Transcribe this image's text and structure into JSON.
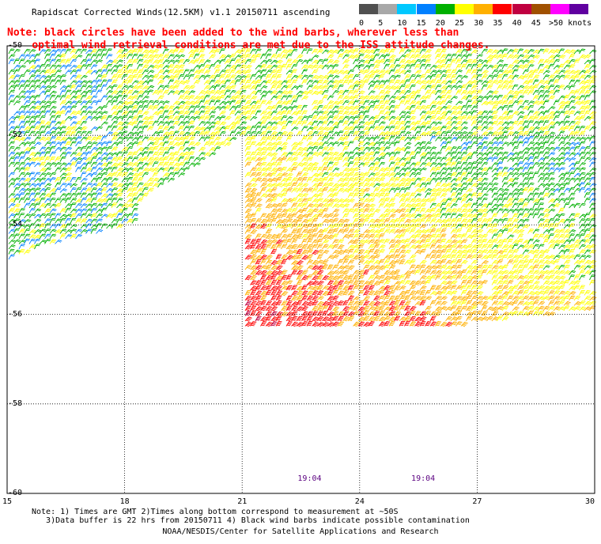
{
  "title": "Rapidscat Corrected Winds(12.5KM) v1.1 20150711 ascending",
  "note_line1": "Note: black circles have been added to the wind barbs, wherever less than",
  "note_line2": "optimal wind retrieval conditions are met due to the ISS attitude changes.",
  "legend": {
    "labels": [
      "0",
      "5",
      "10",
      "15",
      "20",
      "25",
      "30",
      "35",
      "40",
      "45",
      ">50 knots"
    ],
    "colors": [
      "#505050",
      "#a8a8a8",
      "#00c8ff",
      "#0080ff",
      "#00b000",
      "#ffff00",
      "#ffb000",
      "#ff0000",
      "#c00040",
      "#a05000",
      "#ff00ff",
      "#6000a0"
    ]
  },
  "y_labels": [
    "-50",
    "-52",
    "-54",
    "-56",
    "-58",
    "-60"
  ],
  "x_labels": [
    "15",
    "18",
    "21",
    "24",
    "27",
    "30"
  ],
  "y_values": [
    -50,
    -52,
    -54,
    -56,
    -58,
    -60
  ],
  "x_values": [
    15,
    18,
    21,
    24,
    27,
    30
  ],
  "times": [
    {
      "text": "19:04",
      "lon": 22.7
    },
    {
      "text": "19:04",
      "lon": 25.6
    }
  ],
  "footnote1": "Note: 1) Times are GMT 2)Times along bottom correspond to measurement at ~50S",
  "footnote2": "   3)Data buffer is 22 hrs from 20150711 4) Black wind barbs indicate possible contamination",
  "credit": "NOAA/NESDIS/Center for Satellite Applications and Research",
  "swaths": [
    {
      "name": "west-swath",
      "speed_range": [
        12,
        22
      ],
      "polygon": [
        [
          15,
          -50
        ],
        [
          18.2,
          -50
        ],
        [
          18.2,
          -53.9
        ],
        [
          15.8,
          -54.4
        ],
        [
          15,
          -54.7
        ]
      ]
    },
    {
      "name": "north-swath",
      "speed_range": [
        17,
        24
      ],
      "polygon": [
        [
          17.6,
          -50
        ],
        [
          30,
          -50
        ],
        [
          30,
          -51.9
        ],
        [
          21,
          -51.9
        ],
        [
          17.6,
          -53.8
        ]
      ]
    },
    {
      "name": "east-swath",
      "speed_range": [
        16,
        34
      ],
      "polygon": [
        [
          21,
          -51.9
        ],
        [
          30,
          -51.9
        ],
        [
          30,
          -55.8
        ],
        [
          24,
          -56.4
        ],
        [
          23,
          -56.4
        ],
        [
          22,
          -56.4
        ],
        [
          21,
          -56.4
        ]
      ]
    }
  ]
}
